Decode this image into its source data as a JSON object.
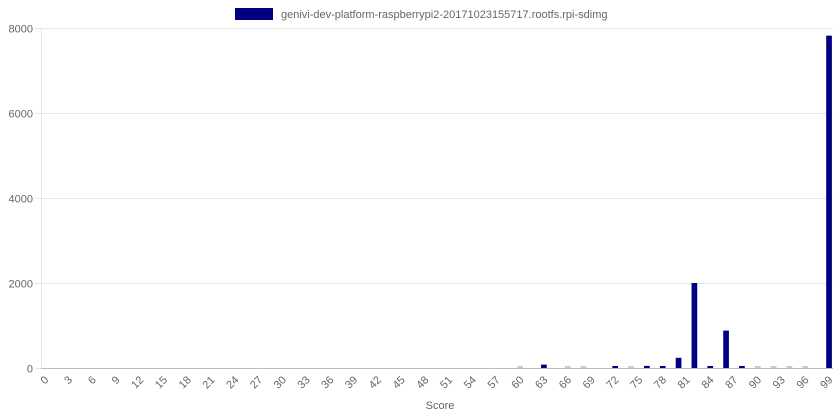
{
  "chart_data": {
    "type": "bar",
    "xlabel": "Score",
    "ylabel": "",
    "ylim": [
      0,
      8000
    ],
    "yticks": [
      0,
      2000,
      4000,
      6000,
      8000
    ],
    "x_tick_step": 3,
    "legend_position": "top",
    "grid": true,
    "colors": {
      "primary": "#000080",
      "faint": "#c8c8e6"
    },
    "categories": [
      0,
      1,
      2,
      3,
      4,
      5,
      6,
      7,
      8,
      9,
      10,
      11,
      12,
      13,
      14,
      15,
      16,
      17,
      18,
      19,
      20,
      21,
      22,
      23,
      24,
      25,
      26,
      27,
      28,
      29,
      30,
      31,
      32,
      33,
      34,
      35,
      36,
      37,
      38,
      39,
      40,
      41,
      42,
      43,
      44,
      45,
      46,
      47,
      48,
      49,
      50,
      51,
      52,
      53,
      54,
      55,
      56,
      57,
      58,
      59,
      60,
      61,
      62,
      63,
      64,
      65,
      66,
      67,
      68,
      69,
      70,
      71,
      72,
      73,
      74,
      75,
      76,
      77,
      78,
      79,
      80,
      81,
      82,
      83,
      84,
      85,
      86,
      87,
      88,
      89,
      90,
      91,
      92,
      93,
      94,
      95,
      96,
      97,
      98,
      99
    ],
    "series": [
      {
        "name": "genivi-dev-platform-raspberrypi2-20171023155717.rootfs.rpi-sdimg",
        "color": "#000080",
        "values": [
          0,
          0,
          0,
          0,
          0,
          0,
          0,
          0,
          0,
          0,
          0,
          0,
          0,
          0,
          0,
          0,
          0,
          0,
          0,
          0,
          0,
          0,
          0,
          0,
          0,
          0,
          0,
          0,
          0,
          0,
          0,
          0,
          0,
          0,
          0,
          0,
          0,
          0,
          0,
          0,
          0,
          0,
          0,
          0,
          0,
          0,
          0,
          0,
          0,
          0,
          0,
          0,
          0,
          0,
          0,
          0,
          0,
          0,
          0,
          0,
          5,
          0,
          0,
          80,
          0,
          0,
          5,
          0,
          5,
          0,
          0,
          0,
          20,
          0,
          5,
          0,
          50,
          0,
          40,
          0,
          240,
          0,
          2000,
          0,
          20,
          0,
          880,
          0,
          20,
          0,
          5,
          0,
          5,
          0,
          5,
          0,
          5,
          0,
          0,
          7820
        ]
      }
    ]
  }
}
